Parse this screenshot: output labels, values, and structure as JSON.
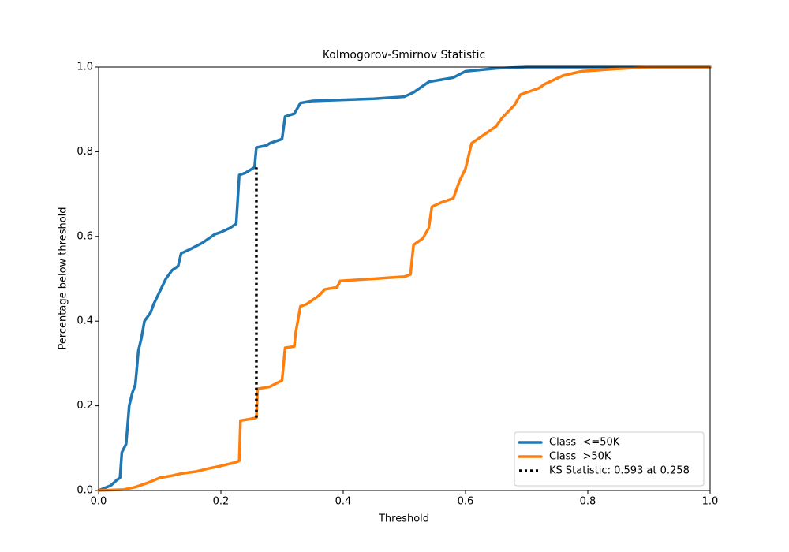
{
  "chart_data": {
    "type": "line",
    "title": "Kolmogorov-Smirnov Statistic",
    "xlabel": "Threshold",
    "ylabel": "Percentage below threshold",
    "xlim": [
      0,
      1
    ],
    "ylim": [
      0,
      1
    ],
    "xticks": [
      {
        "value": 0,
        "label": "0.0"
      },
      0.2,
      0.4,
      0.6,
      0.8,
      {
        "value": 1,
        "label": "1.0"
      }
    ],
    "yticks": [
      {
        "value": 0,
        "label": "0.0"
      },
      0.2,
      0.4,
      0.6,
      0.8,
      {
        "value": 1,
        "label": "1.0"
      }
    ],
    "grid": false,
    "legend": "lower right",
    "series": [
      {
        "name": "Class  <=50K",
        "color": "#1f77b4",
        "linestyle": "solid",
        "x": [
          0,
          0.02,
          0.03,
          0.035,
          0.038,
          0.045,
          0.05,
          0.055,
          0.06,
          0.062,
          0.065,
          0.07,
          0.075,
          0.085,
          0.09,
          0.1,
          0.11,
          0.12,
          0.13,
          0.135,
          0.15,
          0.17,
          0.18,
          0.19,
          0.2,
          0.215,
          0.225,
          0.23,
          0.24,
          0.255,
          0.258,
          0.275,
          0.28,
          0.3,
          0.305,
          0.32,
          0.33,
          0.35,
          0.45,
          0.5,
          0.515,
          0.53,
          0.54,
          0.56,
          0.58,
          0.6,
          0.65,
          0.7,
          1
        ],
        "values": [
          0,
          0.012,
          0.025,
          0.03,
          0.09,
          0.11,
          0.2,
          0.23,
          0.25,
          0.28,
          0.33,
          0.36,
          0.4,
          0.42,
          0.44,
          0.47,
          0.5,
          0.52,
          0.53,
          0.56,
          0.57,
          0.585,
          0.595,
          0.605,
          0.61,
          0.62,
          0.63,
          0.745,
          0.75,
          0.763,
          0.81,
          0.815,
          0.82,
          0.83,
          0.883,
          0.89,
          0.915,
          0.92,
          0.925,
          0.93,
          0.94,
          0.955,
          0.965,
          0.97,
          0.975,
          0.99,
          0.997,
          1,
          1
        ]
      },
      {
        "name": "Class  >50K",
        "color": "#ff7f0e",
        "linestyle": "solid",
        "x": [
          0,
          0.04,
          0.06,
          0.08,
          0.1,
          0.12,
          0.135,
          0.16,
          0.18,
          0.2,
          0.22,
          0.23,
          0.232,
          0.245,
          0.258,
          0.26,
          0.28,
          0.3,
          0.305,
          0.32,
          0.322,
          0.33,
          0.34,
          0.35,
          0.36,
          0.37,
          0.39,
          0.395,
          0.45,
          0.5,
          0.51,
          0.515,
          0.53,
          0.54,
          0.545,
          0.56,
          0.58,
          0.59,
          0.6,
          0.61,
          0.62,
          0.64,
          0.65,
          0.66,
          0.68,
          0.69,
          0.72,
          0.73,
          0.76,
          0.79,
          0.84,
          0.9,
          1
        ],
        "values": [
          0,
          0.002,
          0.008,
          0.018,
          0.03,
          0.035,
          0.04,
          0.045,
          0.052,
          0.058,
          0.065,
          0.07,
          0.165,
          0.168,
          0.172,
          0.24,
          0.245,
          0.26,
          0.337,
          0.34,
          0.37,
          0.435,
          0.44,
          0.45,
          0.46,
          0.475,
          0.48,
          0.495,
          0.5,
          0.505,
          0.51,
          0.58,
          0.595,
          0.62,
          0.67,
          0.68,
          0.69,
          0.73,
          0.76,
          0.82,
          0.83,
          0.85,
          0.86,
          0.88,
          0.91,
          0.935,
          0.95,
          0.96,
          0.98,
          0.99,
          0.995,
          1,
          1
        ]
      },
      {
        "name": "KS Statistic: 0.593 at 0.258",
        "color": "#000000",
        "linestyle": "dotted",
        "x": [
          0.258,
          0.258
        ],
        "values": [
          0.172,
          0.763
        ]
      }
    ]
  }
}
